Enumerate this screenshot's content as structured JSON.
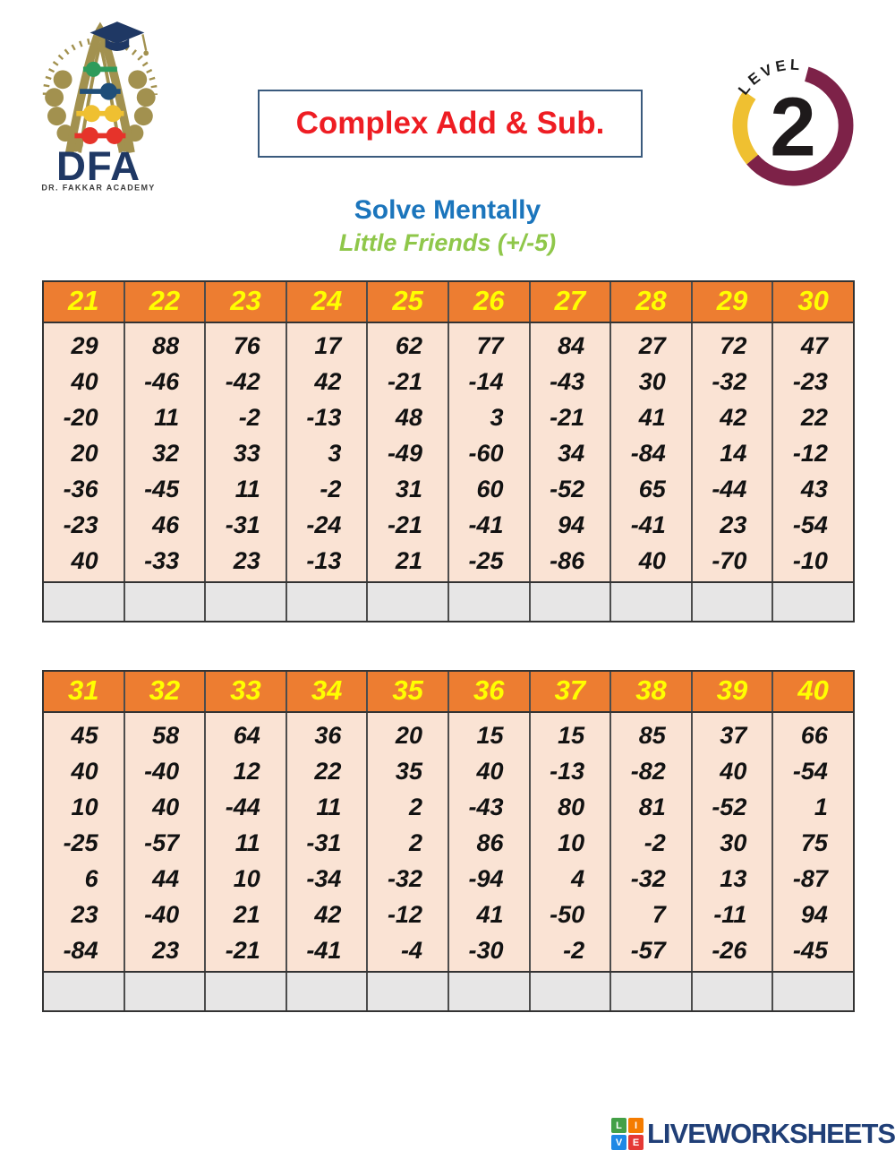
{
  "logo": {
    "name": "DFA",
    "subtitle": "DR. FAKKAR ACADEMY",
    "gold": "#A2914F",
    "navy": "#1F3864",
    "bead_colors": [
      "#2E9B5B",
      "#1F4E79",
      "#EFC031",
      "#E6332A"
    ]
  },
  "title": {
    "text": "Complex Add & Sub.",
    "color": "#EE1D23",
    "border_color": "#3A5A7D"
  },
  "level_badge": {
    "label": "LEVEL",
    "number": "2",
    "arc_primary": "#7D2248",
    "arc_secondary": "#EFC031"
  },
  "subtitle": {
    "line1": "Solve Mentally",
    "line1_color": "#1B75BC",
    "line2": "Little Friends (+/-5)",
    "line2_color": "#8FC74A"
  },
  "table_style": {
    "header_bg": "#ED7D31",
    "header_text": "#FFFF00",
    "body_bg": "#FAE3D4",
    "answer_bg": "#E7E6E6",
    "border": "#333333"
  },
  "tables": [
    {
      "headers": [
        "21",
        "22",
        "23",
        "24",
        "25",
        "26",
        "27",
        "28",
        "29",
        "30"
      ],
      "columns": [
        [
          "29",
          "40",
          "-20",
          "20",
          "-36",
          "-23",
          "40"
        ],
        [
          "88",
          "-46",
          "11",
          "32",
          "-45",
          "46",
          "-33"
        ],
        [
          "76",
          "-42",
          "-2",
          "33",
          "11",
          "-31",
          "23"
        ],
        [
          "17",
          "42",
          "-13",
          "3",
          "-2",
          "-24",
          "-13"
        ],
        [
          "62",
          "-21",
          "48",
          "-49",
          "31",
          "-21",
          "21"
        ],
        [
          "77",
          "-14",
          "3",
          "-60",
          "60",
          "-41",
          "-25"
        ],
        [
          "84",
          "-43",
          "-21",
          "34",
          "-52",
          "94",
          "-86"
        ],
        [
          "27",
          "30",
          "41",
          "-84",
          "65",
          "-41",
          "40"
        ],
        [
          "72",
          "-32",
          "42",
          "14",
          "-44",
          "23",
          "-70"
        ],
        [
          "47",
          "-23",
          "22",
          "-12",
          "43",
          "-54",
          "-10"
        ]
      ]
    },
    {
      "headers": [
        "31",
        "32",
        "33",
        "34",
        "35",
        "36",
        "37",
        "38",
        "39",
        "40"
      ],
      "columns": [
        [
          "45",
          "40",
          "10",
          "-25",
          "6",
          "23",
          "-84"
        ],
        [
          "58",
          "-40",
          "40",
          "-57",
          "44",
          "-40",
          "23"
        ],
        [
          "64",
          "12",
          "-44",
          "11",
          "10",
          "21",
          "-21"
        ],
        [
          "36",
          "22",
          "11",
          "-31",
          "-34",
          "42",
          "-41"
        ],
        [
          "20",
          "35",
          "2",
          "2",
          "-32",
          "-12",
          "-4"
        ],
        [
          "15",
          "40",
          "-43",
          "86",
          "-94",
          "41",
          "-30"
        ],
        [
          "15",
          "-13",
          "80",
          "10",
          "4",
          "-50",
          "-2"
        ],
        [
          "85",
          "-82",
          "81",
          "-2",
          "-32",
          "7",
          "-57"
        ],
        [
          "37",
          "40",
          "-52",
          "30",
          "13",
          "-11",
          "-26"
        ],
        [
          "66",
          "-54",
          "1",
          "75",
          "-87",
          "94",
          "-45"
        ]
      ]
    }
  ],
  "footer": {
    "brand": "LIVEWORKSHEETS",
    "icon_letters": [
      "L",
      "I",
      "V",
      "E"
    ],
    "icon_colors": [
      "#43A047",
      "#F57C00",
      "#1E88E5",
      "#E53935"
    ],
    "text_color": "#203F77"
  }
}
